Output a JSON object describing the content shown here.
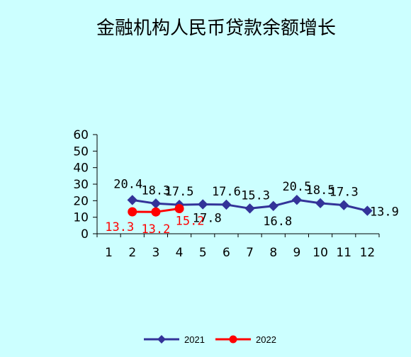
{
  "chart_data": {
    "type": "line",
    "title": "金融机构人民币贷款余额增长",
    "categories": [
      "1",
      "2",
      "3",
      "4",
      "5",
      "6",
      "7",
      "8",
      "9",
      "10",
      "11",
      "12"
    ],
    "ylim": [
      0,
      60
    ],
    "yticks": [
      "0",
      "10",
      "20",
      "30",
      "40",
      "50",
      "60"
    ],
    "grid": false,
    "legend_position": "bottom",
    "series": [
      {
        "name": "2021",
        "color": "#333399",
        "marker": "diamond",
        "x": [
          2,
          3,
          4,
          5,
          6,
          7,
          8,
          9,
          10,
          11,
          12
        ],
        "values": [
          20.4,
          18.3,
          17.5,
          17.8,
          17.6,
          15.3,
          16.8,
          20.5,
          18.5,
          17.3,
          13.9
        ],
        "labels": [
          "20.4",
          "18.3",
          "17.5",
          "17.8",
          "17.6",
          "15.3",
          "16.8",
          "20.5",
          "18.5",
          "17.3",
          "13.9"
        ]
      },
      {
        "name": "2022",
        "color": "#ff0000",
        "marker": "circle",
        "x": [
          2,
          3,
          4
        ],
        "values": [
          13.3,
          13.2,
          15.2
        ],
        "labels": [
          "13.3",
          "13.2",
          "15.2"
        ]
      }
    ]
  }
}
